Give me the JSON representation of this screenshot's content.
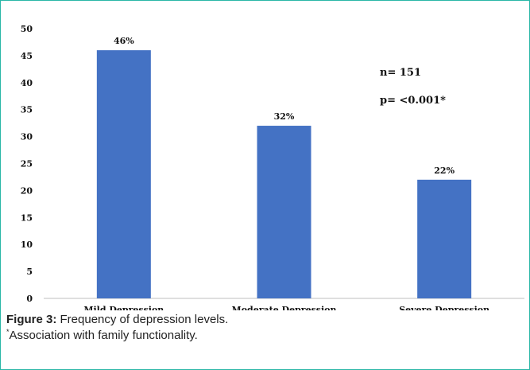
{
  "chart_data": {
    "type": "bar",
    "categories": [
      "Mild Depression",
      "Moderate Depression",
      "Severe Depression"
    ],
    "values": [
      46,
      32,
      22
    ],
    "data_labels": [
      "46%",
      "32%",
      "22%"
    ],
    "ylim": [
      0,
      50
    ],
    "yticks": [
      0,
      5,
      10,
      15,
      20,
      25,
      30,
      35,
      40,
      45,
      50
    ],
    "bar_color": "#4472c4",
    "grid": false,
    "annotations": [
      "n= 151",
      "p= <0.001*"
    ]
  },
  "caption": {
    "figure_label": "Figure 3:",
    "text": " Frequency of depression levels.",
    "note_marker": "*",
    "note_text": "Association with family functionality."
  }
}
